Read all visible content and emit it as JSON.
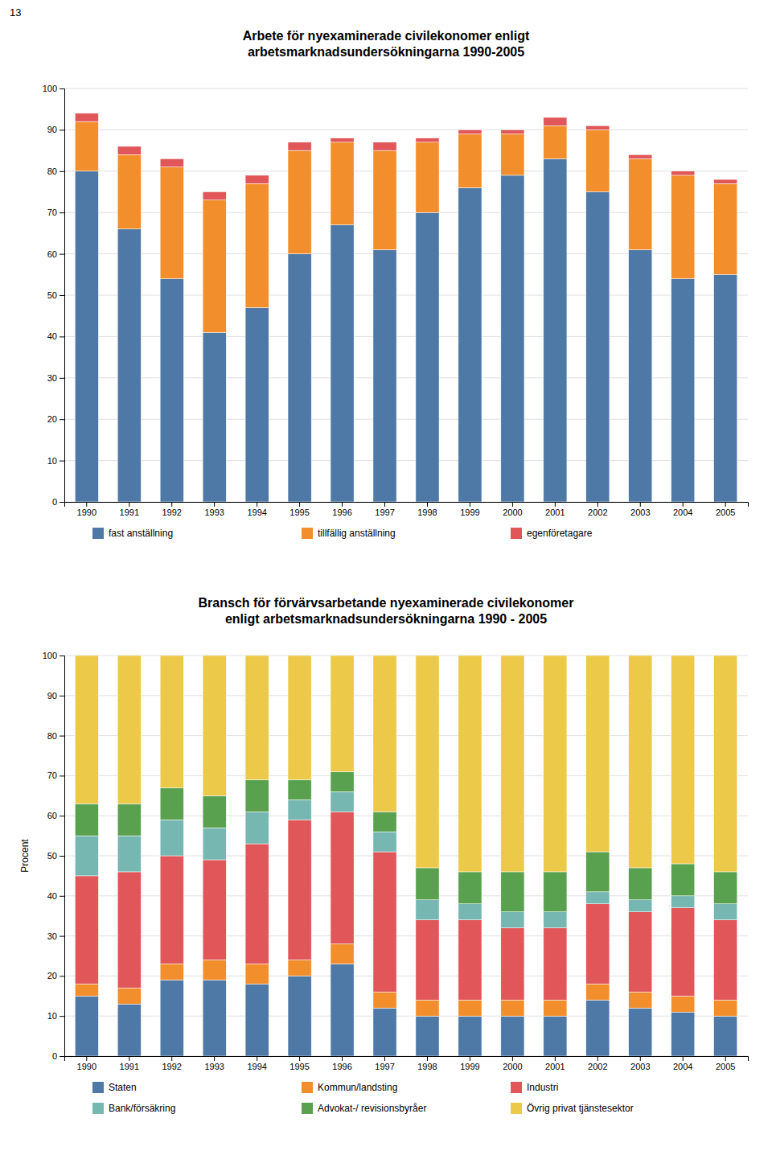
{
  "page_number": "13",
  "chart_data": [
    {
      "type": "bar",
      "stacked": true,
      "grid": true,
      "legend": "bottom",
      "title": "Arbete för nyexaminerade civilekonomer enligt\narbetsmarknadsundersökningarna 1990-2005",
      "categories": [
        "1990",
        "1991",
        "1992",
        "1993",
        "1994",
        "1995",
        "1996",
        "1997",
        "1998",
        "1999",
        "2000",
        "2001",
        "2002",
        "2003",
        "2004",
        "2005"
      ],
      "series": [
        {
          "name": "fast anställning",
          "color": "#4e79a7",
          "values": [
            80,
            66,
            54,
            41,
            47,
            60,
            67,
            61,
            70,
            76,
            79,
            83,
            75,
            61,
            54,
            55
          ]
        },
        {
          "name": "tillfällig anställning",
          "color": "#f28e2c",
          "values": [
            12,
            18,
            27,
            32,
            30,
            25,
            20,
            24,
            17,
            13,
            10,
            8,
            15,
            22,
            25,
            22
          ]
        },
        {
          "name": "egenföretagare",
          "color": "#e15759",
          "values": [
            2,
            2,
            2,
            2,
            2,
            2,
            1,
            2,
            1,
            1,
            1,
            2,
            1,
            1,
            1,
            1
          ]
        }
      ],
      "ylim": [
        0,
        100
      ],
      "yticks": [
        0,
        10,
        20,
        30,
        40,
        50,
        60,
        70,
        80,
        90,
        100
      ]
    },
    {
      "type": "bar",
      "stacked": true,
      "grid": true,
      "legend": "bottom",
      "title": "Bransch för förvärvsarbetande nyexaminerade civilekonomer\nenligt arbetsmarknadsundersökningarna 1990 - 2005",
      "y_label": "Procent",
      "categories": [
        "1990",
        "1991",
        "1992",
        "1993",
        "1994",
        "1995",
        "1996",
        "1997",
        "1998",
        "1999",
        "2000",
        "2001",
        "2002",
        "2003",
        "2004",
        "2005"
      ],
      "series": [
        {
          "name": "Staten",
          "color": "#4e79a7",
          "values": [
            15,
            13,
            19,
            19,
            18,
            20,
            23,
            12,
            10,
            10,
            10,
            10,
            14,
            12,
            11,
            10
          ]
        },
        {
          "name": "Kommun/landsting",
          "color": "#f28e2c",
          "values": [
            3,
            4,
            4,
            5,
            5,
            4,
            5,
            4,
            4,
            4,
            4,
            4,
            4,
            4,
            4,
            4
          ]
        },
        {
          "name": "Industri",
          "color": "#e15759",
          "values": [
            27,
            29,
            27,
            25,
            30,
            35,
            33,
            35,
            20,
            20,
            18,
            18,
            20,
            20,
            22,
            20
          ]
        },
        {
          "name": "Bank/försäkring",
          "color": "#76b7b2",
          "values": [
            10,
            9,
            9,
            8,
            8,
            5,
            5,
            5,
            5,
            4,
            4,
            4,
            3,
            3,
            3,
            4
          ]
        },
        {
          "name": "Advokat-/ revisionsbyråer",
          "color": "#59a14f",
          "values": [
            8,
            8,
            8,
            8,
            8,
            5,
            5,
            5,
            8,
            8,
            10,
            10,
            10,
            8,
            8,
            8
          ]
        },
        {
          "name": "Övrig privat tjänstesektor",
          "color": "#edc949",
          "values": [
            37,
            37,
            33,
            35,
            31,
            31,
            29,
            39,
            53,
            54,
            54,
            54,
            49,
            53,
            52,
            54
          ]
        }
      ],
      "ylim": [
        0,
        100
      ],
      "yticks": [
        0,
        10,
        20,
        30,
        40,
        50,
        60,
        70,
        80,
        90,
        100
      ]
    }
  ]
}
